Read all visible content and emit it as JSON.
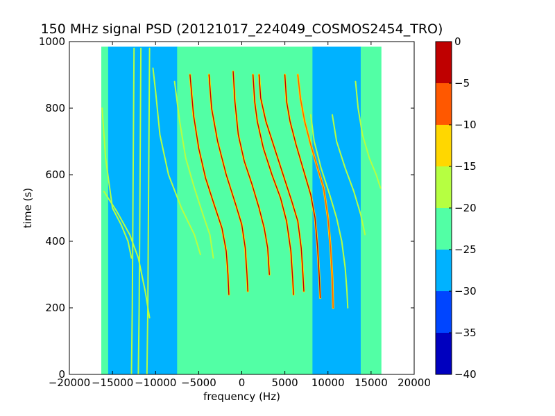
{
  "chart_data": [
    {
      "type": "heatmap",
      "title": "150 MHz signal PSD (20121017_224049_COSMOS2454_TRO)",
      "xlabel": "frequency (Hz)",
      "ylabel": "time (s)",
      "xlim": [
        -20000,
        20000
      ],
      "ylim": [
        0,
        1000
      ],
      "x_ticks": [
        -20000,
        -15000,
        -10000,
        -5000,
        0,
        5000,
        10000,
        15000,
        20000
      ],
      "x_tick_labels": [
        "−20000",
        "−15000",
        "−10000",
        "−5000",
        "0",
        "5000",
        "10000",
        "15000",
        "20000"
      ],
      "y_ticks": [
        0,
        200,
        400,
        600,
        800,
        1000
      ],
      "y_tick_labels": [
        "0",
        "200",
        "400",
        "600",
        "800",
        "1000"
      ],
      "data_extent": {
        "x": [
          -16300,
          16200
        ],
        "y": [
          0,
          985
        ]
      },
      "background_level_by_frequency": [
        {
          "x": [
            -16300,
            -15500
          ],
          "level": -22.5
        },
        {
          "x": [
            -15500,
            -7500
          ],
          "level": -27.5
        },
        {
          "x": [
            -7500,
            7200
          ],
          "level": -22.5
        },
        {
          "x": [
            7200,
            8200
          ],
          "level": -25
        },
        {
          "x": [
            8200,
            13800
          ],
          "level": -27.5
        },
        {
          "x": [
            13800,
            16200
          ],
          "level": -25
        }
      ],
      "traces": [
        {
          "points": [
            [
              -16000,
              550
            ],
            [
              -14500,
              490
            ],
            [
              -13000,
              420
            ],
            [
              -12000,
              350
            ],
            [
              -11200,
              250
            ],
            [
              -10700,
              170
            ]
          ],
          "level": -17.5
        },
        {
          "points": [
            [
              -16200,
              800
            ],
            [
              -15800,
              650
            ],
            [
              -15000,
              500
            ],
            [
              -14000,
              450
            ],
            [
              -13200,
              400
            ],
            [
              -12800,
              350
            ]
          ],
          "level": -17.5
        },
        {
          "points": [
            [
              -10300,
              920
            ],
            [
              -10000,
              850
            ],
            [
              -9500,
              720
            ],
            [
              -8500,
              600
            ],
            [
              -7000,
              500
            ],
            [
              -5500,
              420
            ],
            [
              -4800,
              360
            ]
          ],
          "level": -17.5
        },
        {
          "points": [
            [
              -7800,
              880
            ],
            [
              -7200,
              760
            ],
            [
              -6500,
              650
            ],
            [
              -5500,
              560
            ],
            [
              -4500,
              480
            ],
            [
              -3700,
              420
            ],
            [
              -3300,
              350
            ]
          ],
          "level": -17.5
        },
        {
          "points": [
            [
              -6000,
              900
            ],
            [
              -5600,
              780
            ],
            [
              -5000,
              680
            ],
            [
              -4200,
              590
            ],
            [
              -3200,
              510
            ],
            [
              -2300,
              440
            ],
            [
              -1800,
              370
            ],
            [
              -1600,
              300
            ],
            [
              -1500,
              240
            ]
          ],
          "level": -5
        },
        {
          "points": [
            [
              -3800,
              900
            ],
            [
              -3500,
              800
            ],
            [
              -2800,
              700
            ],
            [
              -1800,
              600
            ],
            [
              -700,
              510
            ],
            [
              0,
              450
            ],
            [
              400,
              380
            ],
            [
              600,
              300
            ],
            [
              700,
              250
            ]
          ],
          "level": -5
        },
        {
          "points": [
            [
              -1000,
              910
            ],
            [
              -800,
              820
            ],
            [
              -400,
              720
            ],
            [
              300,
              640
            ],
            [
              1200,
              570
            ],
            [
              2000,
              500
            ],
            [
              2600,
              440
            ],
            [
              3000,
              380
            ],
            [
              3200,
              300
            ]
          ],
          "level": -5
        },
        {
          "points": [
            [
              1300,
              900
            ],
            [
              1500,
              820
            ],
            [
              1800,
              760
            ],
            [
              2500,
              680
            ],
            [
              3500,
              600
            ],
            [
              4500,
              530
            ],
            [
              5200,
              460
            ],
            [
              5700,
              370
            ],
            [
              5900,
              290
            ],
            [
              6000,
              240
            ]
          ],
          "level": 0
        },
        {
          "points": [
            [
              2000,
              900
            ],
            [
              2200,
              830
            ],
            [
              2800,
              760
            ],
            [
              3800,
              680
            ],
            [
              4800,
              600
            ],
            [
              5800,
              520
            ],
            [
              6500,
              460
            ],
            [
              6900,
              380
            ],
            [
              7100,
              300
            ],
            [
              7200,
              250
            ]
          ],
          "level": -5
        },
        {
          "points": [
            [
              5000,
              900
            ],
            [
              5200,
              820
            ],
            [
              5600,
              760
            ],
            [
              6300,
              690
            ],
            [
              7200,
              610
            ],
            [
              8000,
              540
            ],
            [
              8500,
              470
            ],
            [
              8800,
              380
            ],
            [
              9000,
              290
            ],
            [
              9100,
              230
            ]
          ],
          "level": -5
        },
        {
          "points": [
            [
              6500,
              900
            ],
            [
              6800,
              830
            ],
            [
              7300,
              760
            ],
            [
              8000,
              690
            ],
            [
              8800,
              620
            ],
            [
              9500,
              560
            ],
            [
              10000,
              470
            ],
            [
              10300,
              380
            ],
            [
              10500,
              290
            ],
            [
              10600,
              200
            ]
          ],
          "level": -10
        },
        {
          "points": [
            [
              8000,
              780
            ],
            [
              8400,
              700
            ],
            [
              9200,
              620
            ],
            [
              10200,
              540
            ],
            [
              11000,
              470
            ],
            [
              11600,
              400
            ],
            [
              12000,
              320
            ],
            [
              12200,
              250
            ],
            [
              12300,
              200
            ]
          ],
          "level": -17.5
        },
        {
          "points": [
            [
              10500,
              780
            ],
            [
              11000,
              700
            ],
            [
              12000,
              620
            ],
            [
              13000,
              550
            ],
            [
              13800,
              480
            ],
            [
              14300,
              420
            ]
          ],
          "level": -17.5
        },
        {
          "points": [
            [
              13200,
              880
            ],
            [
              13500,
              800
            ],
            [
              14000,
              720
            ],
            [
              14800,
              650
            ],
            [
              15600,
              600
            ],
            [
              16100,
              560
            ]
          ],
          "level": -17.5
        },
        {
          "points": [
            [
              -12500,
              980
            ],
            [
              -12600,
              600
            ],
            [
              -12700,
              200
            ],
            [
              -12800,
              0
            ]
          ],
          "level": -20
        },
        {
          "points": [
            [
              -11700,
              980
            ],
            [
              -11800,
              600
            ],
            [
              -11900,
              200
            ],
            [
              -12000,
              0
            ]
          ],
          "level": -20
        },
        {
          "points": [
            [
              -10700,
              980
            ],
            [
              -10800,
              600
            ],
            [
              -10900,
              200
            ],
            [
              -11000,
              0
            ]
          ],
          "level": -20
        }
      ],
      "colorbar": {
        "range": [
          -40,
          0
        ],
        "bands": [
          {
            "from": -40,
            "to": -35,
            "color": "#0000bf"
          },
          {
            "from": -35,
            "to": -30,
            "color": "#0045ff"
          },
          {
            "from": -30,
            "to": -25,
            "color": "#00b2ff"
          },
          {
            "from": -25,
            "to": -20,
            "color": "#52ffa5"
          },
          {
            "from": -20,
            "to": -15,
            "color": "#b6ff41"
          },
          {
            "from": -15,
            "to": -10,
            "color": "#ffd700"
          },
          {
            "from": -10,
            "to": -5,
            "color": "#ff5800"
          },
          {
            "from": -5,
            "to": 0,
            "color": "#bf0000"
          }
        ],
        "ticks": [
          0,
          -5,
          -10,
          -15,
          -20,
          -25,
          -30,
          -35,
          -40
        ],
        "tick_labels": [
          "0",
          "−5",
          "−10",
          "−15",
          "−20",
          "−25",
          "−30",
          "−35",
          "−40"
        ]
      }
    }
  ]
}
